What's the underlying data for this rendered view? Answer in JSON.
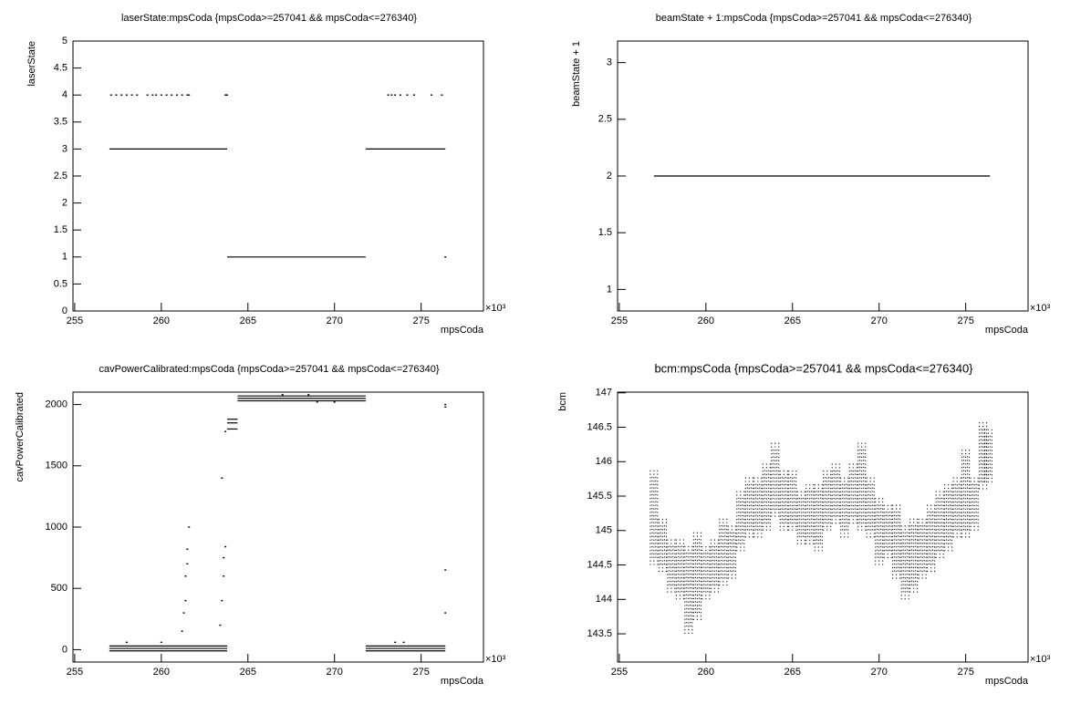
{
  "chart_data": [
    {
      "type": "scatter",
      "title": "laserState:mpsCoda {mpsCoda>=257041 && mpsCoda<=276340}",
      "xlabel": "mpsCoda",
      "ylabel": "laserState",
      "x_multiplier": "×10³",
      "xlim": [
        254.9,
        278.6
      ],
      "ylim": [
        0,
        5
      ],
      "xticks": [
        255,
        260,
        265,
        270,
        275
      ],
      "yticks": [
        0,
        0.5,
        1,
        1.5,
        2,
        2.5,
        3,
        3.5,
        4,
        4.5,
        5
      ],
      "color": "#000000",
      "series": [
        {
          "style": "line",
          "x": [
            257.0,
            263.8
          ],
          "values": [
            3,
            3
          ]
        },
        {
          "style": "line",
          "x": [
            271.8,
            276.4
          ],
          "values": [
            3,
            3
          ]
        },
        {
          "style": "line",
          "x": [
            263.8,
            271.8
          ],
          "values": [
            1,
            1
          ]
        },
        {
          "style": "points",
          "x": [
            257.1,
            257.4,
            257.7,
            258.0,
            258.3,
            258.6,
            259.2,
            259.5,
            259.7,
            260.0,
            260.3,
            260.6,
            260.9,
            261.2,
            261.5,
            261.6,
            263.7,
            263.8,
            273.1,
            273.3,
            273.5,
            273.8,
            274.2,
            274.6,
            275.6,
            276.2,
            276.4
          ],
          "values": [
            4,
            4,
            4,
            4,
            4,
            4,
            4,
            4,
            4,
            4,
            4,
            4,
            4,
            4,
            4,
            4,
            4,
            4,
            4,
            4,
            4,
            4,
            4,
            4,
            4,
            4,
            1
          ]
        }
      ]
    },
    {
      "type": "scatter",
      "title": "beamState + 1:mpsCoda {mpsCoda>=257041 && mpsCoda<=276340}",
      "xlabel": "mpsCoda",
      "ylabel": "beamState + 1",
      "x_multiplier": "×10³",
      "xlim": [
        254.9,
        278.6
      ],
      "ylim": [
        0.81,
        3.19
      ],
      "xticks": [
        255,
        260,
        265,
        270,
        275
      ],
      "yticks": [
        1,
        1.5,
        2,
        2.5,
        3
      ],
      "color": "#000000",
      "series": [
        {
          "style": "line",
          "x": [
            257.0,
            276.4
          ],
          "values": [
            2,
            2
          ]
        }
      ]
    },
    {
      "type": "scatter",
      "title": "cavPowerCalibrated:mpsCoda {mpsCoda>=257041 && mpsCoda<=276340}",
      "xlabel": "mpsCoda",
      "ylabel": "cavPowerCalibrated",
      "x_multiplier": "×10³",
      "xlim": [
        254.9,
        278.6
      ],
      "ylim": [
        -101,
        2101
      ],
      "xticks": [
        255,
        260,
        265,
        270,
        275
      ],
      "yticks": [
        0,
        500,
        1000,
        1500,
        2000
      ],
      "color": "#000000",
      "series": [
        {
          "style": "line",
          "x": [
            257.0,
            263.8
          ],
          "values": [
            30,
            30
          ]
        },
        {
          "style": "line",
          "x": [
            257.0,
            263.8
          ],
          "values": [
            10,
            10
          ]
        },
        {
          "style": "line",
          "x": [
            257.0,
            263.8
          ],
          "values": [
            -10,
            -10
          ]
        },
        {
          "style": "line",
          "x": [
            271.8,
            276.4
          ],
          "values": [
            30,
            30
          ]
        },
        {
          "style": "line",
          "x": [
            271.8,
            276.4
          ],
          "values": [
            10,
            10
          ]
        },
        {
          "style": "line",
          "x": [
            271.8,
            276.4
          ],
          "values": [
            -10,
            -10
          ]
        },
        {
          "style": "line",
          "x": [
            263.8,
            264.4
          ],
          "values": [
            1880,
            1880
          ]
        },
        {
          "style": "line",
          "x": [
            263.8,
            264.4
          ],
          "values": [
            1850,
            1850
          ]
        },
        {
          "style": "line",
          "x": [
            263.8,
            264.4
          ],
          "values": [
            1800,
            1800
          ]
        },
        {
          "style": "line",
          "x": [
            264.4,
            271.8
          ],
          "values": [
            2070,
            2070
          ]
        },
        {
          "style": "line",
          "x": [
            264.4,
            271.8
          ],
          "values": [
            2050,
            2050
          ]
        },
        {
          "style": "line",
          "x": [
            264.4,
            271.8
          ],
          "values": [
            2030,
            2030
          ]
        },
        {
          "style": "points",
          "x": [
            261.2,
            261.3,
            261.4,
            261.4,
            261.5,
            261.5,
            261.6,
            263.4,
            263.5,
            263.5,
            263.6,
            263.6,
            263.7,
            263.7,
            276.4,
            276.4,
            276.4,
            276.4,
            267.0,
            268.5,
            269.0,
            270.0,
            258.0,
            260.0,
            273.5,
            274.0
          ],
          "values": [
            150,
            300,
            400,
            600,
            700,
            820,
            1000,
            200,
            400,
            1400,
            600,
            750,
            840,
            1780,
            650,
            300,
            2000,
            1980,
            2080,
            2080,
            2020,
            2020,
            60,
            60,
            60,
            60
          ]
        }
      ]
    },
    {
      "type": "scatter",
      "title": "bcm:mpsCoda {mpsCoda>=257041 && mpsCoda<=276340}",
      "xlabel": "mpsCoda",
      "ylabel": "bcm",
      "x_multiplier": "×10³",
      "xlim": [
        254.9,
        278.6
      ],
      "ylim": [
        143.09,
        147.01
      ],
      "xticks": [
        255,
        260,
        265,
        270,
        275
      ],
      "yticks": [
        143.5,
        144,
        144.5,
        145,
        145.5,
        146,
        146.5,
        147
      ],
      "color": "#000000",
      "series": [
        {
          "style": "range",
          "x": [
            257.0,
            257.5,
            258.0,
            258.5,
            259.0,
            259.5,
            260.0,
            260.5,
            261.0,
            261.5,
            262.0,
            262.5,
            263.0,
            263.5,
            264.0,
            264.5,
            265.0,
            265.5,
            266.0,
            266.5,
            267.0,
            267.5,
            268.0,
            268.5,
            269.0,
            269.5,
            270.0,
            270.5,
            271.0,
            271.5,
            272.0,
            272.5,
            273.0,
            273.5,
            274.0,
            274.5,
            275.0,
            275.5,
            276.0,
            276.3
          ],
          "low": [
            144.5,
            144.4,
            144.1,
            144.0,
            143.5,
            143.7,
            144.0,
            144.1,
            144.2,
            144.3,
            144.7,
            144.9,
            144.9,
            145.0,
            145.2,
            145.0,
            145.0,
            144.8,
            144.8,
            144.7,
            145.0,
            145.1,
            144.9,
            145.1,
            145.0,
            144.9,
            144.5,
            144.6,
            144.3,
            144.0,
            144.1,
            144.3,
            144.4,
            144.6,
            144.7,
            144.9,
            144.9,
            145.0,
            145.6,
            145.7
          ],
          "high": [
            145.9,
            145.2,
            144.9,
            144.9,
            144.8,
            145.0,
            144.8,
            144.9,
            145.2,
            145.1,
            145.6,
            145.8,
            145.8,
            146.0,
            146.3,
            145.9,
            145.9,
            145.6,
            145.7,
            145.7,
            145.9,
            146.0,
            145.8,
            146.0,
            146.3,
            145.8,
            145.5,
            145.4,
            145.4,
            145.1,
            145.2,
            145.2,
            145.4,
            145.6,
            145.7,
            145.8,
            146.2,
            145.8,
            146.6,
            146.5
          ]
        }
      ]
    }
  ]
}
